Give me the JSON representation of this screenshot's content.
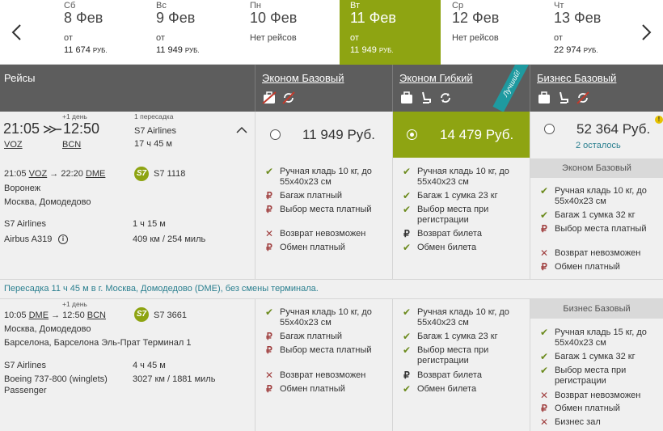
{
  "dates": [
    {
      "dow": "Сб",
      "day": "8 Фев",
      "from": "от",
      "price": "11 674",
      "cur": "РУБ.",
      "active": false
    },
    {
      "dow": "Вс",
      "day": "9 Фев",
      "from": "от",
      "price": "11 949",
      "cur": "РУБ.",
      "active": false
    },
    {
      "dow": "Пн",
      "day": "10 Фев",
      "from": "Нет рейсов",
      "price": "",
      "cur": "",
      "active": false
    },
    {
      "dow": "Вт",
      "day": "11 Фев",
      "from": "от",
      "price": "11 949",
      "cur": "РУБ.",
      "active": true
    },
    {
      "dow": "Ср",
      "day": "12 Фев",
      "from": "Нет рейсов",
      "price": "",
      "cur": "",
      "active": false
    },
    {
      "dow": "Чт",
      "day": "13 Фев",
      "from": "от",
      "price": "22 974",
      "cur": "РУБ.",
      "active": false
    }
  ],
  "header": {
    "flights": "Рейсы",
    "fares": [
      "Эконом Базовый",
      "Эконом Гибкий",
      "Бизнес Базовый"
    ],
    "best": "Лучший!"
  },
  "summary": {
    "plus_day": "+1 день",
    "dep_time": "21:05",
    "arr_time": "12:50",
    "dep_code": "VOZ",
    "arr_code": "BCN",
    "stops": "1 пересадка",
    "airline": "S7 Airlines",
    "duration": "17 ч 45 м"
  },
  "seg1": {
    "dep_time": "21:05",
    "dep_code": "VOZ",
    "arr_time": "22:20",
    "arr_code": "DME",
    "flight": "S7 1118",
    "from_city": "Воронеж",
    "to_city": "Москва, Домодедово",
    "airline": "S7 Airlines",
    "duration": "1 ч 15 м",
    "aircraft": "Airbus A319",
    "distance": "409 км / 254 миль"
  },
  "transfer": "Пересадка 11 ч 45 м в г. Москва, Домодедово (DME), без смены терминала.",
  "seg2": {
    "plus_day": "+1 день",
    "dep_time": "10:05",
    "dep_code": "DME",
    "arr_time": "12:50",
    "arr_code": "BCN",
    "flight": "S7 3661",
    "from_city": "Москва, Домодедово",
    "to_city": "Барселона, Барселона Эль-Прат Терминал 1",
    "airline": "S7 Airlines",
    "duration": "4 ч 45 м",
    "aircraft1": "Boeing 737-800 (winglets)",
    "aircraft2": "Passenger",
    "distance": "3027 км / 1881 миль"
  },
  "fare1": {
    "price": "11 949 Руб.",
    "seg1": [
      "Ручная кладь 10 кг, до",
      "55x40x23 см",
      "Багаж платный",
      "Выбор места платный",
      "Возврат невозможен",
      "Обмен платный"
    ],
    "seg2": [
      "Ручная кладь 10 кг, до",
      "55x40x23 см",
      "Багаж платный",
      "Выбор места платный",
      "Возврат невозможен",
      "Обмен платный"
    ]
  },
  "fare2": {
    "price": "14 479 Руб.",
    "seg1": [
      "Ручная кладь 10 кг, до",
      "55x40x23 см",
      "Багаж 1 сумка 23 кг",
      "Выбор места при",
      "регистрации",
      "Возврат билета",
      "Обмен билета"
    ],
    "seg2": [
      "Ручная кладь 10 кг, до",
      "55x40x23 см",
      "Багаж 1 сумка 23 кг",
      "Выбор места при",
      "регистрации",
      "Возврат билета",
      "Обмен билета"
    ]
  },
  "fare3": {
    "price": "52 364 Руб.",
    "left": "2 осталось",
    "seg1_title": "Эконом Базовый",
    "seg1": [
      "Ручная кладь 10 кг, до",
      "55x40x23 см",
      "Багаж 1 сумка 32 кг",
      "Выбор места платный",
      "Возврат невозможен",
      "Обмен платный"
    ],
    "seg2_title": "Бизнес Базовый",
    "seg2": [
      "Ручная кладь 15 кг, до",
      "55x40x23 см",
      "Багаж 1 сумка 32 кг",
      "Выбор места при",
      "регистрации",
      "Возврат невозможен",
      "Обмен платный",
      "Бизнес зал"
    ]
  }
}
